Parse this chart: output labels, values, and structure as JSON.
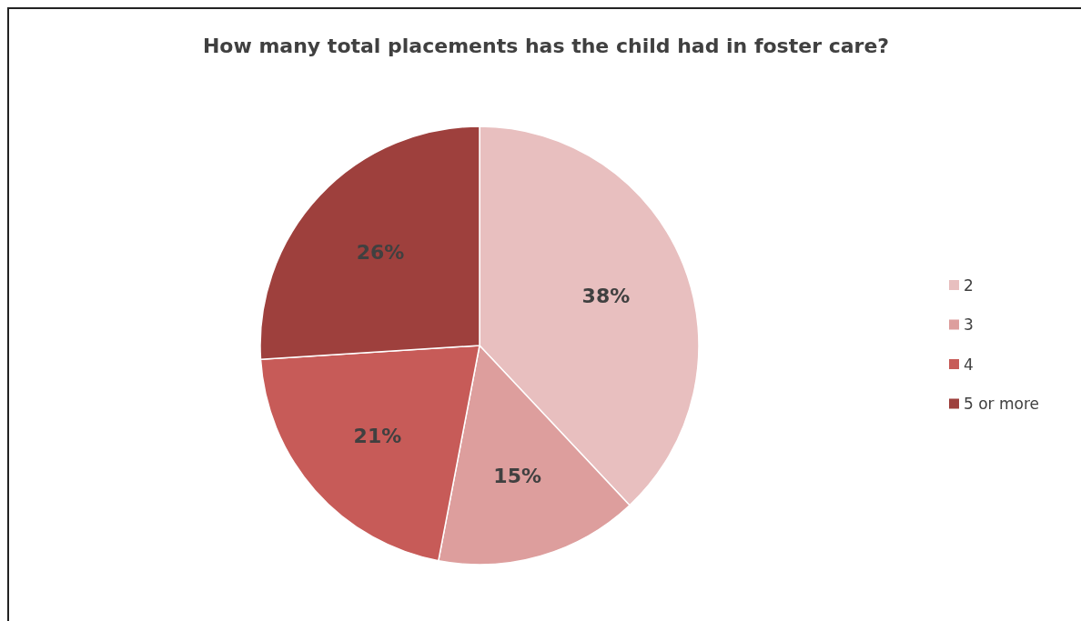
{
  "chart_data": {
    "type": "pie",
    "title": "How many total placements has the child had in foster care?",
    "categories": [
      "2",
      "3",
      "4",
      "5 or more"
    ],
    "values": [
      38,
      15,
      21,
      26
    ],
    "colors": [
      "#e8bfbf",
      "#dd9e9d",
      "#c75b58",
      "#9e403d"
    ],
    "value_labels": [
      "38%",
      "15%",
      "21%",
      "26%"
    ],
    "legend": "right"
  }
}
